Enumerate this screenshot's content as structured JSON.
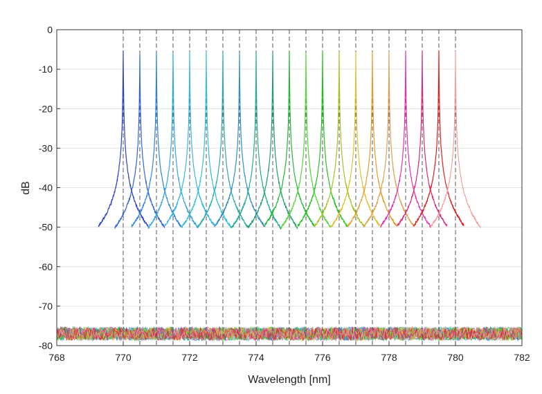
{
  "chart_data": {
    "type": "line",
    "title": "",
    "xlabel": "Wavelength [nm]",
    "ylabel": "dB",
    "xlim": [
      768,
      782
    ],
    "ylim": [
      -80,
      0
    ],
    "xticks": [
      "768",
      "770",
      "772",
      "774",
      "776",
      "778",
      "780",
      "782"
    ],
    "yticks": [
      "0",
      "-10",
      "-20",
      "-30",
      "-40",
      "-50",
      "-60",
      "-70",
      "-80"
    ],
    "grid": true,
    "legend": "none",
    "noise_floor_db": -77,
    "peak_level_db": -5.5,
    "reference_lines_nm": [
      770,
      770.5,
      771,
      771.5,
      772,
      772.5,
      773,
      773.5,
      774,
      774.5,
      775,
      775.5,
      776,
      776.5,
      777,
      777.5,
      778,
      778.5,
      779,
      779.5,
      780
    ],
    "series": [
      {
        "center_nm": 770.0,
        "peak_db": -5.5,
        "color": "#2a3fcc"
      },
      {
        "center_nm": 770.5,
        "peak_db": -5.8,
        "color": "#2f63d6"
      },
      {
        "center_nm": 771.0,
        "peak_db": -5.6,
        "color": "#2b86dc"
      },
      {
        "center_nm": 771.5,
        "peak_db": -5.9,
        "color": "#2fa6e0"
      },
      {
        "center_nm": 772.0,
        "peak_db": -5.4,
        "color": "#34b8e4"
      },
      {
        "center_nm": 772.5,
        "peak_db": -5.8,
        "color": "#30bfd4"
      },
      {
        "center_nm": 773.0,
        "peak_db": -5.6,
        "color": "#2ba8a8"
      },
      {
        "center_nm": 773.5,
        "peak_db": -5.5,
        "color": "#2f8fc4"
      },
      {
        "center_nm": 774.0,
        "peak_db": -6.0,
        "color": "#1fae8e"
      },
      {
        "center_nm": 774.5,
        "peak_db": -5.9,
        "color": "#1b9e6c"
      },
      {
        "center_nm": 775.0,
        "peak_db": -5.3,
        "color": "#1fb832"
      },
      {
        "center_nm": 775.5,
        "peak_db": -5.8,
        "color": "#55d43b"
      },
      {
        "center_nm": 776.0,
        "peak_db": -5.5,
        "color": "#22c21e"
      },
      {
        "center_nm": 776.5,
        "peak_db": -5.6,
        "color": "#a6c21e"
      },
      {
        "center_nm": 777.0,
        "peak_db": -5.7,
        "color": "#e0c030"
      },
      {
        "center_nm": 777.5,
        "peak_db": -5.6,
        "color": "#e69a2a"
      },
      {
        "center_nm": 778.0,
        "peak_db": -5.5,
        "color": "#e0a050"
      },
      {
        "center_nm": 778.5,
        "peak_db": -5.5,
        "color": "#e630b0"
      },
      {
        "center_nm": 779.0,
        "peak_db": -5.4,
        "color": "#d82a78"
      },
      {
        "center_nm": 779.5,
        "peak_db": -5.2,
        "color": "#e01e1e"
      },
      {
        "center_nm": 780.0,
        "peak_db": -5.7,
        "color": "#f4a0a0"
      }
    ]
  }
}
